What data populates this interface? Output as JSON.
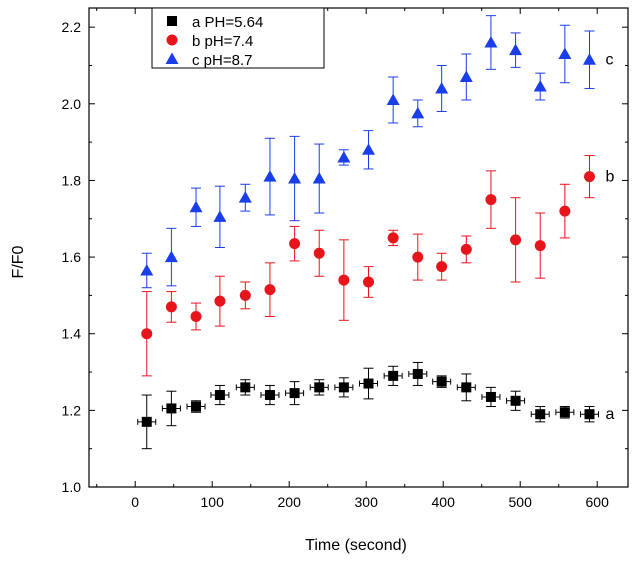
{
  "chart_data": {
    "type": "scatter",
    "xlabel": "Time (second)",
    "ylabel": "F/F0",
    "xlim": [
      -60,
      640
    ],
    "ylim": [
      1.0,
      2.25
    ],
    "xticks": [
      "0",
      "100",
      "200",
      "300",
      "400",
      "500",
      "600"
    ],
    "yticks": [
      "1.0",
      "1.2",
      "1.4",
      "1.6",
      "1.8",
      "2.0",
      "2.2"
    ],
    "legend_position": "top-left",
    "grid": false,
    "series": [
      {
        "name": "a PH=5.64",
        "marker": "square",
        "color": "#000000",
        "end_label": "a",
        "x": [
          15,
          47,
          79,
          110,
          143,
          175,
          207,
          239,
          271,
          303,
          335,
          367,
          398,
          430,
          462,
          494,
          526,
          558,
          590
        ],
        "y": [
          1.17,
          1.205,
          1.21,
          1.24,
          1.26,
          1.24,
          1.245,
          1.26,
          1.26,
          1.27,
          1.29,
          1.295,
          1.275,
          1.26,
          1.235,
          1.225,
          1.19,
          1.195,
          1.19
        ],
        "err": [
          0.07,
          0.045,
          0.015,
          0.025,
          0.02,
          0.025,
          0.03,
          0.02,
          0.025,
          0.04,
          0.025,
          0.03,
          0.015,
          0.035,
          0.025,
          0.025,
          0.02,
          0.015,
          0.02
        ]
      },
      {
        "name": "b pH=7.4",
        "marker": "circle",
        "color": "#e8141c",
        "end_label": "b",
        "x": [
          15,
          47,
          79,
          110,
          143,
          175,
          207,
          239,
          271,
          303,
          335,
          367,
          398,
          430,
          462,
          494,
          526,
          558,
          590
        ],
        "y": [
          1.4,
          1.47,
          1.445,
          1.485,
          1.5,
          1.515,
          1.635,
          1.61,
          1.54,
          1.535,
          1.65,
          1.6,
          1.575,
          1.62,
          1.75,
          1.645,
          1.63,
          1.72,
          1.81
        ],
        "err": [
          0.11,
          0.04,
          0.035,
          0.065,
          0.035,
          0.07,
          0.045,
          0.06,
          0.105,
          0.04,
          0.02,
          0.06,
          0.035,
          0.035,
          0.075,
          0.11,
          0.085,
          0.07,
          0.055
        ]
      },
      {
        "name": "c pH=8.7",
        "marker": "triangle",
        "color": "#1a3ee8",
        "end_label": "c",
        "x": [
          15,
          47,
          79,
          110,
          143,
          175,
          207,
          239,
          271,
          303,
          335,
          367,
          398,
          430,
          462,
          494,
          526,
          558,
          590
        ],
        "y": [
          1.565,
          1.6,
          1.73,
          1.705,
          1.755,
          1.81,
          1.805,
          1.805,
          1.86,
          1.88,
          2.01,
          1.975,
          2.04,
          2.07,
          2.16,
          2.14,
          2.045,
          2.13,
          2.115
        ],
        "err": [
          0.045,
          0.075,
          0.05,
          0.08,
          0.035,
          0.1,
          0.11,
          0.09,
          0.02,
          0.05,
          0.06,
          0.035,
          0.06,
          0.06,
          0.07,
          0.045,
          0.035,
          0.075,
          0.075
        ]
      }
    ]
  }
}
